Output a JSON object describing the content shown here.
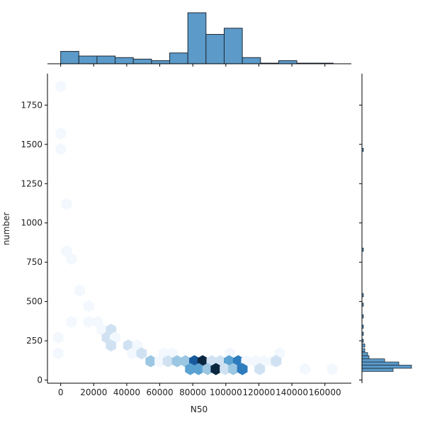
{
  "chart_data": {
    "type": "hexbin",
    "xlabel": "N50",
    "ylabel": "number",
    "xlim": [
      -8000,
      176000
    ],
    "ylim": [
      -20,
      1950
    ],
    "x_ticks": [
      0,
      20000,
      40000,
      60000,
      80000,
      100000,
      120000,
      140000,
      160000
    ],
    "y_ticks": [
      0,
      250,
      500,
      750,
      1000,
      1250,
      1500,
      1750
    ],
    "grid": false,
    "colormap": [
      "#f2f8fd",
      "#d0e2f2",
      "#9cc7e3",
      "#5aa2d2",
      "#2c7cbe",
      "#175b9c",
      "#0b2740"
    ],
    "bar_color": "#5b9ac9",
    "bar_edge_color": "#1f2a36",
    "marginal_x": {
      "bin_edges": [
        0,
        11000,
        22000,
        33000,
        44000,
        55000,
        66000,
        77000,
        88000,
        99000,
        110000,
        121000,
        132000,
        143000,
        154000,
        165000
      ],
      "counts": [
        8,
        5,
        5,
        4,
        3,
        2,
        7,
        33,
        19,
        23,
        4,
        0.4,
        2,
        0.4,
        0.4
      ]
    },
    "marginal_y": {
      "bins": [
        {
          "y0": 55,
          "y1": 75,
          "count": 22
        },
        {
          "y0": 75,
          "y1": 95,
          "count": 35
        },
        {
          "y0": 95,
          "y1": 115,
          "count": 26
        },
        {
          "y0": 115,
          "y1": 135,
          "count": 16
        },
        {
          "y0": 135,
          "y1": 155,
          "count": 5
        },
        {
          "y0": 155,
          "y1": 175,
          "count": 4
        },
        {
          "y0": 180,
          "y1": 200,
          "count": 2
        },
        {
          "y0": 210,
          "y1": 230,
          "count": 2
        },
        {
          "y0": 240,
          "y1": 260,
          "count": 1
        },
        {
          "y0": 285,
          "y1": 305,
          "count": 1
        },
        {
          "y0": 330,
          "y1": 350,
          "count": 1
        },
        {
          "y0": 395,
          "y1": 415,
          "count": 1
        },
        {
          "y0": 470,
          "y1": 490,
          "count": 1
        },
        {
          "y0": 530,
          "y1": 550,
          "count": 1
        },
        {
          "y0": 820,
          "y1": 840,
          "count": 1
        },
        {
          "y0": 1455,
          "y1": 1475,
          "count": 1
        }
      ]
    },
    "hexbins": [
      {
        "x": 0,
        "y": 1870,
        "count": 1
      },
      {
        "x": 0,
        "y": 1570,
        "count": 1
      },
      {
        "x": 0,
        "y": 1470,
        "count": 1
      },
      {
        "x": 3500,
        "y": 1120,
        "count": 1
      },
      {
        "x": 3500,
        "y": 820,
        "count": 1
      },
      {
        "x": 6500,
        "y": 770,
        "count": 1
      },
      {
        "x": 11500,
        "y": 570,
        "count": 1
      },
      {
        "x": 17000,
        "y": 470,
        "count": 1
      },
      {
        "x": 6500,
        "y": 370,
        "count": 1
      },
      {
        "x": 17000,
        "y": 370,
        "count": 1
      },
      {
        "x": 22500,
        "y": 370,
        "count": 1
      },
      {
        "x": -1500,
        "y": 270,
        "count": 1
      },
      {
        "x": -1500,
        "y": 170,
        "count": 1
      },
      {
        "x": 25000,
        "y": 320,
        "count": 1
      },
      {
        "x": 30500,
        "y": 320,
        "count": 2
      },
      {
        "x": 28000,
        "y": 270,
        "count": 2
      },
      {
        "x": 33000,
        "y": 270,
        "count": 1
      },
      {
        "x": 30500,
        "y": 220,
        "count": 2
      },
      {
        "x": 41000,
        "y": 220,
        "count": 2
      },
      {
        "x": 46500,
        "y": 220,
        "count": 1
      },
      {
        "x": 43500,
        "y": 170,
        "count": 1
      },
      {
        "x": 49000,
        "y": 170,
        "count": 2
      },
      {
        "x": 62500,
        "y": 170,
        "count": 1
      },
      {
        "x": 67500,
        "y": 170,
        "count": 1
      },
      {
        "x": 102500,
        "y": 170,
        "count": 1
      },
      {
        "x": 132500,
        "y": 170,
        "count": 1
      },
      {
        "x": 54500,
        "y": 120,
        "count": 3
      },
      {
        "x": 60000,
        "y": 120,
        "count": 1
      },
      {
        "x": 65000,
        "y": 120,
        "count": 2
      },
      {
        "x": 70500,
        "y": 120,
        "count": 3
      },
      {
        "x": 75500,
        "y": 120,
        "count": 3
      },
      {
        "x": 81000,
        "y": 120,
        "count": 6
      },
      {
        "x": 86000,
        "y": 120,
        "count": 7
      },
      {
        "x": 91500,
        "y": 120,
        "count": 2
      },
      {
        "x": 96500,
        "y": 120,
        "count": 2
      },
      {
        "x": 102000,
        "y": 120,
        "count": 4
      },
      {
        "x": 107500,
        "y": 120,
        "count": 5
      },
      {
        "x": 112500,
        "y": 120,
        "count": 1
      },
      {
        "x": 118000,
        "y": 120,
        "count": 1
      },
      {
        "x": 123000,
        "y": 120,
        "count": 1
      },
      {
        "x": 128500,
        "y": 120,
        "count": 1
      },
      {
        "x": 130500,
        "y": 120,
        "count": 2
      },
      {
        "x": 78500,
        "y": 70,
        "count": 4
      },
      {
        "x": 83500,
        "y": 70,
        "count": 4
      },
      {
        "x": 89000,
        "y": 70,
        "count": 3
      },
      {
        "x": 94000,
        "y": 70,
        "count": 7
      },
      {
        "x": 99500,
        "y": 70,
        "count": 2
      },
      {
        "x": 104500,
        "y": 70,
        "count": 3
      },
      {
        "x": 110000,
        "y": 70,
        "count": 5
      },
      {
        "x": 120500,
        "y": 70,
        "count": 2
      },
      {
        "x": 148000,
        "y": 70,
        "count": 1
      },
      {
        "x": 164500,
        "y": 70,
        "count": 1
      }
    ]
  }
}
